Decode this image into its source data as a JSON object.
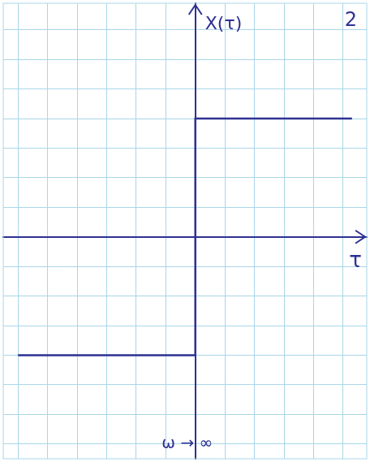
{
  "chart_data": {
    "type": "line",
    "x_label": "τ",
    "y_label": "X(τ)",
    "annotations": [
      "ω → ∞",
      "2"
    ],
    "x": [
      -6,
      0,
      0,
      5.3
    ],
    "values": [
      -4,
      -4,
      4,
      4
    ],
    "color": "#2e3192",
    "xlim": [
      -6.5,
      5.8
    ],
    "ylim": [
      -7.5,
      7.9
    ],
    "xticks": [
      -6,
      -5,
      -4,
      -3,
      -2,
      -1,
      0,
      1,
      2,
      3,
      4,
      5
    ],
    "yticks": [
      -7,
      -6,
      -5,
      -4,
      -3,
      -2,
      -1,
      0,
      1,
      2,
      3,
      4,
      5,
      6,
      7
    ],
    "grid": true,
    "tick_labels": false
  }
}
